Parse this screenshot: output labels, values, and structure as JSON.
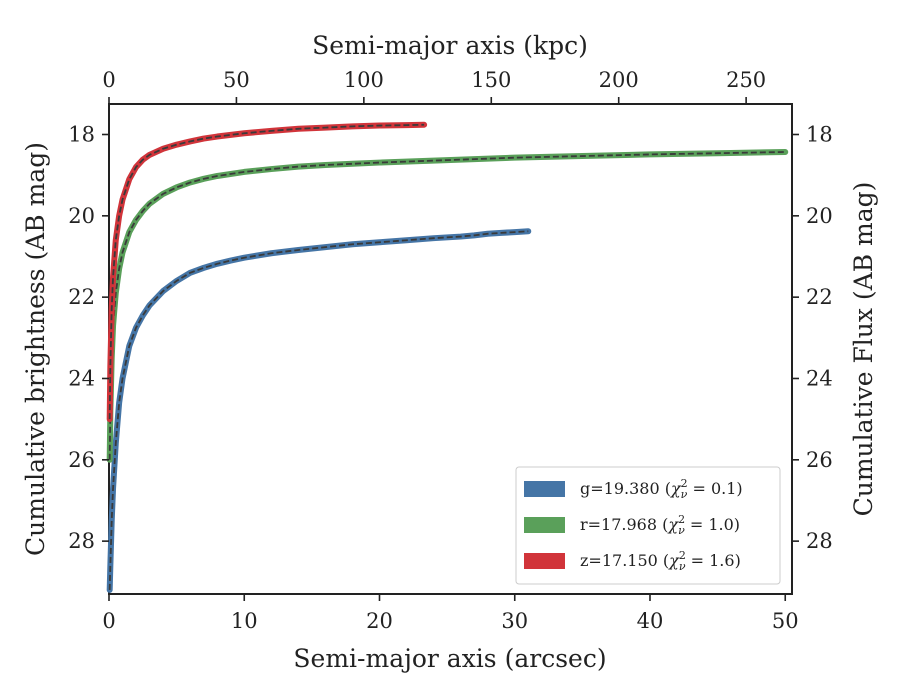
{
  "chart_data": {
    "type": "line",
    "xlabel": "Semi-major axis (arcsec)",
    "ylabel": "Cumulative brightness (AB mag)",
    "top_xlabel": "Semi-major axis (kpc)",
    "right_ylabel": "Cumulative Flux (AB mag)",
    "xlim": [
      0,
      50.5
    ],
    "ylim": [
      29.3,
      17.25
    ],
    "top_xlim": [
      0,
      268
    ],
    "x_ticks": [
      0,
      10,
      20,
      30,
      40,
      50
    ],
    "x_tick_labels": [
      "0",
      "10",
      "20",
      "30",
      "40",
      "50"
    ],
    "top_x_ticks": [
      0,
      50,
      100,
      150,
      200,
      250
    ],
    "top_x_tick_labels": [
      "0",
      "50",
      "100",
      "150",
      "200",
      "250"
    ],
    "y_ticks": [
      18,
      20,
      22,
      24,
      26,
      28
    ],
    "y_tick_labels": [
      "18",
      "20",
      "22",
      "24",
      "26",
      "28"
    ],
    "grid": false,
    "legend_position": "lower-right",
    "series": [
      {
        "name": "g=19.380",
        "chi2": "0.1",
        "color": "#4575a6",
        "x": [
          0.05,
          0.1,
          0.2,
          0.3,
          0.5,
          0.75,
          1.0,
          1.5,
          2.0,
          2.5,
          3.0,
          4.0,
          5.0,
          6.0,
          7.0,
          8.0,
          9.0,
          10.0,
          12.0,
          14.0,
          16.0,
          18.0,
          20.0,
          22.0,
          24.0,
          26.0,
          27.0,
          28.0,
          29.0,
          30.0,
          31.0
        ],
        "y": [
          29.2,
          28.6,
          27.5,
          26.7,
          25.6,
          24.6,
          24.0,
          23.2,
          22.75,
          22.45,
          22.2,
          21.85,
          21.6,
          21.4,
          21.28,
          21.18,
          21.1,
          21.03,
          20.92,
          20.84,
          20.77,
          20.7,
          20.65,
          20.6,
          20.55,
          20.51,
          20.48,
          20.44,
          20.42,
          20.4,
          20.38
        ]
      },
      {
        "name": "r=17.968",
        "chi2": "1.0",
        "color": "#5aa05a",
        "x": [
          0.05,
          0.1,
          0.2,
          0.3,
          0.5,
          0.75,
          1.0,
          1.5,
          2.0,
          2.5,
          3.0,
          4.0,
          5.0,
          6.0,
          7.0,
          8.0,
          10.0,
          12.0,
          14.0,
          16.0,
          18.0,
          20.0,
          25.0,
          30.0,
          35.0,
          40.0,
          45.0,
          50.0
        ],
        "y": [
          26.0,
          24.8,
          23.5,
          22.7,
          21.9,
          21.3,
          20.9,
          20.4,
          20.1,
          19.88,
          19.7,
          19.46,
          19.3,
          19.18,
          19.09,
          19.02,
          18.92,
          18.85,
          18.79,
          18.75,
          18.72,
          18.69,
          18.63,
          18.57,
          18.53,
          18.49,
          18.46,
          18.43
        ]
      },
      {
        "name": "z=17.150",
        "chi2": "1.6",
        "color": "#d1343a",
        "x": [
          0.05,
          0.1,
          0.2,
          0.3,
          0.5,
          0.75,
          1.0,
          1.5,
          2.0,
          2.5,
          3.0,
          4.0,
          5.0,
          6.0,
          7.0,
          8.0,
          10.0,
          12.0,
          14.0,
          16.0,
          18.0,
          20.0,
          22.0,
          23.3
        ],
        "y": [
          25.0,
          23.7,
          22.3,
          21.5,
          20.6,
          20.0,
          19.6,
          19.1,
          18.8,
          18.62,
          18.5,
          18.35,
          18.25,
          18.17,
          18.1,
          18.05,
          17.97,
          17.91,
          17.86,
          17.83,
          17.8,
          17.78,
          17.77,
          17.76
        ]
      }
    ]
  }
}
